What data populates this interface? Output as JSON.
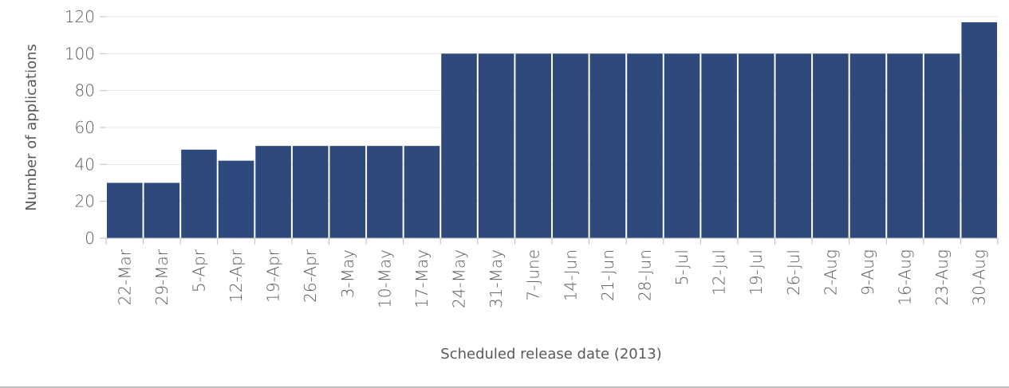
{
  "chart_data": {
    "type": "bar",
    "title": "",
    "xlabel": "Scheduled release date (2013)",
    "ylabel": "Number of applications",
    "ylim": [
      0,
      120
    ],
    "yticks": [
      0,
      20,
      40,
      60,
      80,
      100,
      120
    ],
    "grid": true,
    "legend": "none",
    "bar_color": "#2e4a7d",
    "categories": [
      "22-Mar",
      "29-Mar",
      "5-Apr",
      "12-Apr",
      "19-Apr",
      "26-Apr",
      "3-May",
      "10-May",
      "17-May",
      "24-May",
      "31-May",
      "7-June",
      "14-Jun",
      "21-Jun",
      "28-Jun",
      "5-Jul",
      "12-Jul",
      "19-Jul",
      "26-Jul",
      "2-Aug",
      "9-Aug",
      "16-Aug",
      "23-Aug",
      "30-Aug"
    ],
    "values": [
      30,
      30,
      48,
      42,
      50,
      50,
      50,
      50,
      50,
      100,
      100,
      100,
      100,
      100,
      100,
      100,
      100,
      100,
      100,
      100,
      100,
      100,
      100,
      117
    ]
  }
}
